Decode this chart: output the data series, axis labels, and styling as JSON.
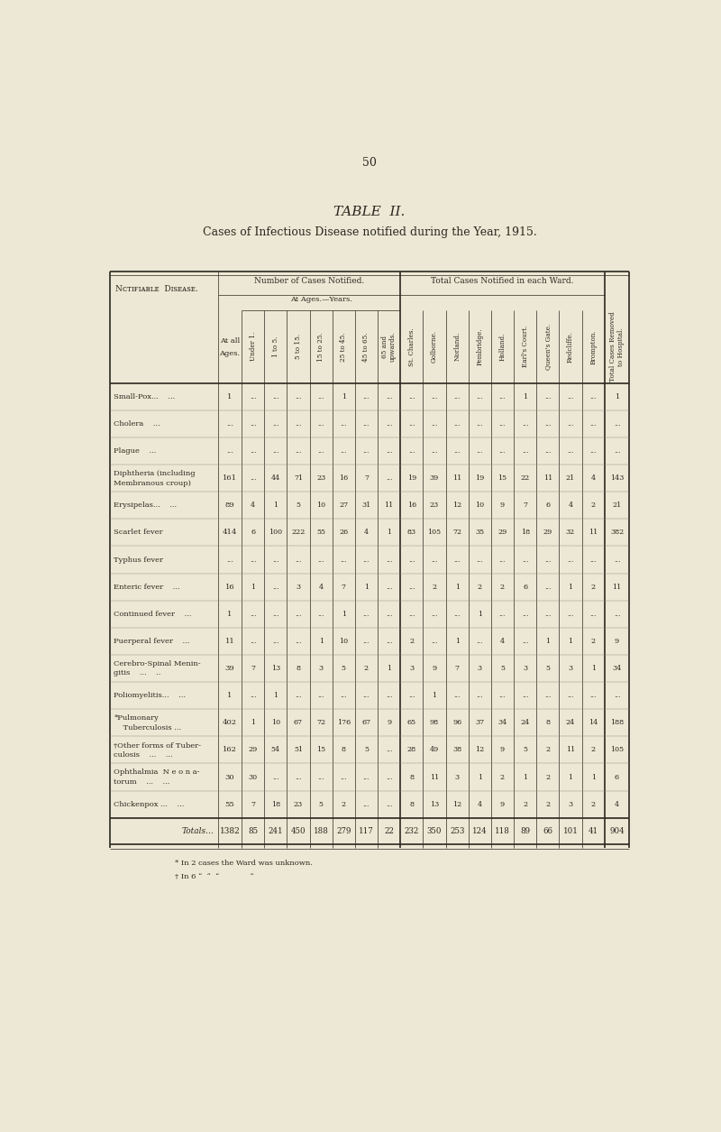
{
  "page_number": "50",
  "title": "TABLE  II.",
  "subtitle": "Cases of Infectious Disease notified during the Year, 1915.",
  "bg_color": "#ede8d5",
  "text_color": "#2a2820",
  "footnotes": [
    "* In 2 cases the Ward was unknown.",
    "† In 6 “  “  “             “"
  ],
  "col_headers_rot": [
    "Under 1.",
    "1 to 5.",
    "5 to 15.",
    "15 to 25.",
    "25 to 45.",
    "45 to 65.",
    "65 and\nupwards.",
    "St. Charles.",
    "Golborne.",
    "Norland.",
    "Pembridge.",
    "Holland.",
    "Earl's Court.",
    "Queen's Gate.",
    "Redcliffe.",
    "Brompton.",
    "Total Cases Removed\nto Hospital."
  ],
  "rows": [
    {
      "label": "Small-Pox...",
      "label2": "...",
      "values": [
        "1",
        "...",
        "...",
        "...",
        "...",
        "1",
        "...",
        "...",
        "...",
        "...",
        "...",
        "...",
        "...",
        "1",
        "...",
        "...",
        "...",
        "1"
      ]
    },
    {
      "label": "Cholera",
      "label2": "...",
      "values": [
        "...",
        "...",
        "...",
        "...",
        "...",
        "...",
        "...",
        "...",
        "...",
        "...",
        "...",
        "...",
        "...",
        "...",
        "...",
        "...",
        "...",
        "..."
      ]
    },
    {
      "label": "Plague",
      "label2": "...",
      "values": [
        "...",
        "...",
        "...",
        "...",
        "...",
        "...",
        "...",
        "...",
        "...",
        "...",
        "...",
        "...",
        "...",
        "...",
        "...",
        "...",
        "...",
        "..."
      ]
    },
    {
      "label": "Diphtheria (including",
      "label2": "Membranous croup)",
      "values": [
        "161",
        "...",
        "44",
        "71",
        "23",
        "16",
        "7",
        "...",
        "19",
        "39",
        "11",
        "19",
        "15",
        "22",
        "11",
        "21",
        "4",
        "143"
      ]
    },
    {
      "label": "Erysipelas...",
      "label2": "...",
      "values": [
        "89",
        "4",
        "1",
        "5",
        "10",
        "27",
        "31",
        "11",
        "16",
        "23",
        "12",
        "10",
        "9",
        "7",
        "6",
        "4",
        "2",
        "21"
      ]
    },
    {
      "label": "Scarlet fever",
      "label2": "",
      "values": [
        "414",
        "6",
        "100",
        "222",
        "55",
        "26",
        "4",
        "1",
        "83",
        "105",
        "72",
        "35",
        "29",
        "18",
        "29",
        "32",
        "11",
        "382"
      ]
    },
    {
      "label": "Typhus fever",
      "label2": "",
      "values": [
        "...",
        "...",
        "...",
        "...",
        "...",
        "...",
        "...",
        "...",
        "...",
        "...",
        "...",
        "...",
        "...",
        "...",
        "...",
        "...",
        "...",
        "..."
      ]
    },
    {
      "label": "Enteric fever",
      "label2": "...",
      "values": [
        "16",
        "1",
        "...",
        "3",
        "4",
        "7",
        "1",
        "...",
        "...",
        "2",
        "1",
        "2",
        "2",
        "6",
        "...",
        "1",
        "2",
        "11"
      ]
    },
    {
      "label": "Continued fever",
      "label2": "...",
      "values": [
        "1",
        "...",
        "...",
        "...",
        "...",
        "1",
        "...",
        "...",
        "...",
        "...",
        "...",
        "1",
        "...",
        "...",
        "...",
        "...",
        "...",
        "..."
      ]
    },
    {
      "label": "Puerperal fever",
      "label2": "...",
      "values": [
        "11",
        "...",
        "...",
        "...",
        "1",
        "10",
        "...",
        "...",
        "2",
        "...",
        "1",
        "...",
        "4",
        "...",
        "1",
        "1",
        "2",
        "9"
      ]
    },
    {
      "label": "Cerebro-Spinal Menin-",
      "label2": "gitis    ...    ..",
      "values": [
        "39",
        "7",
        "13",
        "8",
        "3",
        "5",
        "2",
        "1",
        "3",
        "9",
        "7",
        "3",
        "5",
        "3",
        "5",
        "3",
        "1",
        "34"
      ]
    },
    {
      "label": "Poliomyelitis...",
      "label2": "...",
      "values": [
        "1",
        "...",
        "1",
        "...",
        "...",
        "...",
        "...",
        "...",
        "...",
        "1",
        "...",
        "...",
        "...",
        "...",
        "...",
        "...",
        "...",
        "..."
      ]
    },
    {
      "label": "*Pulmonary",
      "label2": "    Tuberculosis ...",
      "values": [
        "402",
        "1",
        "10",
        "67",
        "72",
        "176",
        "67",
        "9",
        "65",
        "98",
        "96",
        "37",
        "34",
        "24",
        "8",
        "24",
        "14",
        "188"
      ]
    },
    {
      "label": "†Other forms of Tuber-",
      "label2": "culosis    ...    ...",
      "values": [
        "162",
        "29",
        "54",
        "51",
        "15",
        "8",
        "5",
        "...",
        "28",
        "49",
        "38",
        "12",
        "9",
        "5",
        "2",
        "11",
        "2",
        "105"
      ]
    },
    {
      "label": "Ophthalmia  N e o n a-",
      "label2": "torum    ...    ...",
      "values": [
        "30",
        "30",
        "...",
        "...",
        "...",
        "...",
        "...",
        "...",
        "8",
        "11",
        "3",
        "1",
        "2",
        "1",
        "2",
        "1",
        "1",
        "6"
      ]
    },
    {
      "label": "Chickenpox ...",
      "label2": "...",
      "values": [
        "55",
        "7",
        "18",
        "23",
        "5",
        "2",
        "...",
        "...",
        "8",
        "13",
        "12",
        "4",
        "9",
        "2",
        "2",
        "3",
        "2",
        "4"
      ]
    }
  ],
  "totals": [
    "1382",
    "85",
    "241",
    "450",
    "188",
    "279",
    "117",
    "22",
    "232",
    "350",
    "253",
    "124",
    "118",
    "89",
    "66",
    "101",
    "41",
    "904"
  ]
}
